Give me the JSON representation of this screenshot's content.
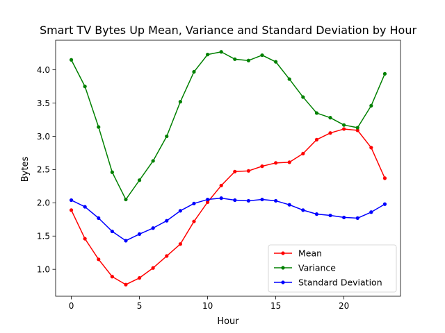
{
  "chart_data": {
    "type": "line",
    "title": "Smart TV Bytes Up Mean, Variance and Standard Deviation by Hour",
    "xlabel": "Hour",
    "ylabel": "Bytes",
    "xlim": [
      -1.15,
      24.15
    ],
    "ylim": [
      0.595,
      4.445
    ],
    "x_ticks": [
      0,
      5,
      10,
      15,
      20
    ],
    "x_tick_labels": [
      "0",
      "5",
      "10",
      "15",
      "20"
    ],
    "y_ticks": [
      1.0,
      1.5,
      2.0,
      2.5,
      3.0,
      3.5,
      4.0
    ],
    "y_tick_labels": [
      "1.0",
      "1.5",
      "2.0",
      "2.5",
      "3.0",
      "3.5",
      "4.0"
    ],
    "grid": false,
    "legend_position": "lower-right",
    "x": [
      0,
      1,
      2,
      3,
      4,
      5,
      6,
      7,
      8,
      9,
      10,
      11,
      12,
      13,
      14,
      15,
      16,
      17,
      18,
      19,
      20,
      21,
      22,
      23
    ],
    "series": [
      {
        "name": "Mean",
        "color": "#ff0000",
        "values": [
          1.89,
          1.46,
          1.15,
          0.89,
          0.77,
          0.87,
          1.02,
          1.2,
          1.38,
          1.72,
          2.01,
          2.26,
          2.47,
          2.48,
          2.55,
          2.6,
          2.61,
          2.74,
          2.95,
          3.05,
          3.11,
          3.09,
          2.83,
          2.37
        ]
      },
      {
        "name": "Variance",
        "color": "#008000",
        "values": [
          4.15,
          3.75,
          3.14,
          2.46,
          2.05,
          2.34,
          2.63,
          3.0,
          3.52,
          3.97,
          4.23,
          4.27,
          4.16,
          4.14,
          4.22,
          4.12,
          3.86,
          3.59,
          3.35,
          3.28,
          3.17,
          3.13,
          3.46,
          3.94
        ]
      },
      {
        "name": "Standard Deviation",
        "color": "#0000ff",
        "values": [
          2.04,
          1.94,
          1.77,
          1.57,
          1.43,
          1.53,
          1.62,
          1.73,
          1.88,
          1.99,
          2.05,
          2.07,
          2.04,
          2.03,
          2.05,
          2.03,
          1.97,
          1.89,
          1.83,
          1.81,
          1.78,
          1.77,
          1.86,
          1.98
        ]
      }
    ]
  }
}
